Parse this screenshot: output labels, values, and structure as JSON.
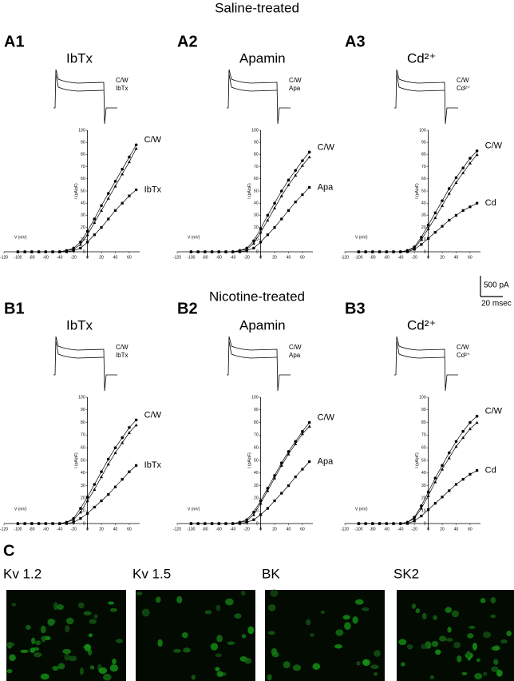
{
  "headings": {
    "saline": "Saline-treated",
    "nicotine": "Nicotine-treated"
  },
  "scale_bar": {
    "current": "500 pA",
    "time": "20 msec"
  },
  "panel_c": {
    "label": "C",
    "images": [
      "Kv 1.2",
      "Kv 1.5",
      "BK",
      "SK2"
    ]
  },
  "chart_data": [
    {
      "type": "line",
      "panel": "A1",
      "title": "IbTx",
      "inset_labels": [
        "C/W",
        "IbTx"
      ],
      "xlabel": "V (mV)",
      "ylabel": "I (pA/pF)",
      "x": [
        -100,
        -90,
        -80,
        -70,
        -60,
        -50,
        -40,
        -30,
        -20,
        -10,
        0,
        10,
        20,
        30,
        40,
        50,
        60,
        70
      ],
      "series": [
        {
          "name": "C/W",
          "color": "#000000",
          "marker": "circle",
          "values": [
            0,
            0,
            0,
            0,
            0,
            0,
            0,
            1,
            3,
            8,
            17,
            27,
            38,
            48,
            58,
            68,
            78,
            88
          ]
        },
        {
          "color": "#000000",
          "marker": "triangle",
          "values": [
            0,
            0,
            0,
            0,
            0,
            0,
            0,
            1,
            2,
            6,
            14,
            24,
            34,
            44,
            54,
            64,
            74,
            85
          ]
        },
        {
          "name": "IbTx",
          "color": "#000000",
          "marker": "square",
          "values": [
            0,
            0,
            0,
            0,
            0,
            0,
            0,
            0,
            1,
            3,
            8,
            14,
            20,
            27,
            34,
            40,
            46,
            51
          ]
        }
      ],
      "xlim": [
        -120,
        75
      ],
      "ylim": [
        0,
        100
      ],
      "xticks": [
        -120,
        -100,
        -80,
        -60,
        -40,
        -20,
        0,
        20,
        40,
        60
      ],
      "yticks": [
        0,
        10,
        20,
        30,
        40,
        50,
        60,
        70,
        80,
        90,
        100
      ]
    },
    {
      "type": "line",
      "panel": "A2",
      "title": "Apamin",
      "inset_labels": [
        "C/W",
        "Apa"
      ],
      "xlabel": "V (mV)",
      "ylabel": "I (pA/pF)",
      "x": [
        -100,
        -90,
        -80,
        -70,
        -60,
        -50,
        -40,
        -30,
        -20,
        -10,
        0,
        10,
        20,
        30,
        40,
        50,
        60,
        70
      ],
      "series": [
        {
          "name": "C/W",
          "color": "#000000",
          "marker": "circle",
          "values": [
            0,
            0,
            0,
            0,
            0,
            0,
            0,
            1,
            3,
            9,
            19,
            30,
            40,
            50,
            59,
            67,
            75,
            82
          ]
        },
        {
          "color": "#000000",
          "marker": "triangle",
          "values": [
            0,
            0,
            0,
            0,
            0,
            0,
            0,
            1,
            2,
            7,
            16,
            26,
            36,
            46,
            55,
            63,
            71,
            78
          ]
        },
        {
          "name": "Apa",
          "color": "#000000",
          "marker": "square",
          "values": [
            0,
            0,
            0,
            0,
            0,
            0,
            0,
            0,
            1,
            3,
            8,
            14,
            20,
            27,
            34,
            41,
            47,
            53
          ]
        }
      ],
      "xlim": [
        -120,
        75
      ],
      "ylim": [
        0,
        100
      ],
      "xticks": [
        -120,
        -100,
        -80,
        -60,
        -40,
        -20,
        0,
        20,
        40,
        60
      ],
      "yticks": [
        0,
        10,
        20,
        30,
        40,
        50,
        60,
        70,
        80,
        90,
        100
      ]
    },
    {
      "type": "line",
      "panel": "A3",
      "title": "Cd²⁺",
      "inset_labels": [
        "C/W",
        "Cd²⁺"
      ],
      "xlabel": "V (mV)",
      "ylabel": "I (pA/pF)",
      "x": [
        -100,
        -90,
        -80,
        -70,
        -60,
        -50,
        -40,
        -30,
        -20,
        -10,
        0,
        10,
        20,
        30,
        40,
        50,
        60,
        70
      ],
      "series": [
        {
          "name": "C/W",
          "color": "#000000",
          "marker": "circle",
          "values": [
            0,
            0,
            0,
            0,
            0,
            0,
            0,
            1,
            4,
            12,
            22,
            32,
            42,
            52,
            61,
            69,
            77,
            83
          ]
        },
        {
          "color": "#000000",
          "marker": "triangle",
          "values": [
            0,
            0,
            0,
            0,
            0,
            0,
            0,
            1,
            3,
            10,
            19,
            28,
            38,
            48,
            57,
            65,
            73,
            80
          ]
        },
        {
          "name": "Cd",
          "color": "#000000",
          "marker": "square",
          "values": [
            0,
            0,
            0,
            0,
            0,
            0,
            0,
            0,
            2,
            6,
            11,
            16,
            21,
            26,
            30,
            34,
            37,
            40
          ]
        }
      ],
      "xlim": [
        -120,
        75
      ],
      "ylim": [
        0,
        100
      ],
      "xticks": [
        -120,
        -100,
        -80,
        -60,
        -40,
        -20,
        0,
        20,
        40,
        60
      ],
      "yticks": [
        0,
        10,
        20,
        30,
        40,
        50,
        60,
        70,
        80,
        90,
        100
      ]
    },
    {
      "type": "line",
      "panel": "B1",
      "title": "IbTx",
      "inset_labels": [
        "C/W",
        "IbTx"
      ],
      "xlabel": "V (mV)",
      "ylabel": "I (pA/pF)",
      "x": [
        -100,
        -90,
        -80,
        -70,
        -60,
        -50,
        -40,
        -30,
        -20,
        -10,
        0,
        10,
        20,
        30,
        40,
        50,
        60,
        70
      ],
      "series": [
        {
          "name": "C/W",
          "color": "#000000",
          "marker": "circle",
          "values": [
            0,
            0,
            0,
            0,
            0,
            0,
            0,
            1,
            4,
            12,
            21,
            31,
            41,
            51,
            60,
            68,
            76,
            82
          ]
        },
        {
          "color": "#000000",
          "marker": "triangle",
          "values": [
            0,
            0,
            0,
            0,
            0,
            0,
            0,
            1,
            3,
            9,
            18,
            27,
            37,
            47,
            56,
            64,
            72,
            78
          ]
        },
        {
          "name": "IbTx",
          "color": "#000000",
          "marker": "square",
          "values": [
            0,
            0,
            0,
            0,
            0,
            0,
            0,
            0,
            1,
            4,
            8,
            13,
            18,
            23,
            29,
            35,
            41,
            46
          ]
        }
      ],
      "xlim": [
        -120,
        75
      ],
      "ylim": [
        0,
        100
      ],
      "xticks": [
        -120,
        -100,
        -80,
        -60,
        -40,
        -20,
        0,
        20,
        40,
        60
      ],
      "yticks": [
        0,
        10,
        20,
        30,
        40,
        50,
        60,
        70,
        80,
        90,
        100
      ]
    },
    {
      "type": "line",
      "panel": "B2",
      "title": "Apamin",
      "inset_labels": [
        "C/W",
        "Apa"
      ],
      "xlabel": "V (mV)",
      "ylabel": "I (pA/pF)",
      "x": [
        -100,
        -90,
        -80,
        -70,
        -60,
        -50,
        -40,
        -30,
        -20,
        -10,
        0,
        10,
        20,
        30,
        40,
        50,
        60,
        70
      ],
      "series": [
        {
          "name": "C/W",
          "color": "#000000",
          "marker": "circle",
          "values": [
            0,
            0,
            0,
            0,
            0,
            0,
            0,
            1,
            3,
            9,
            18,
            28,
            38,
            48,
            57,
            65,
            73,
            80
          ]
        },
        {
          "color": "#000000",
          "marker": "triangle",
          "values": [
            0,
            0,
            0,
            0,
            0,
            0,
            0,
            1,
            2,
            7,
            16,
            26,
            36,
            46,
            55,
            63,
            71,
            77
          ]
        },
        {
          "name": "Apa",
          "color": "#000000",
          "marker": "square",
          "values": [
            0,
            0,
            0,
            0,
            0,
            0,
            0,
            0,
            1,
            3,
            7,
            12,
            18,
            24,
            30,
            37,
            43,
            49
          ]
        }
      ],
      "xlim": [
        -120,
        75
      ],
      "ylim": [
        0,
        100
      ],
      "xticks": [
        -120,
        -100,
        -80,
        -60,
        -40,
        -20,
        0,
        20,
        40,
        60
      ],
      "yticks": [
        0,
        10,
        20,
        30,
        40,
        50,
        60,
        70,
        80,
        90,
        100
      ]
    },
    {
      "type": "line",
      "panel": "B3",
      "title": "Cd²⁺",
      "inset_labels": [
        "C/W",
        "Cd²⁺"
      ],
      "xlabel": "V (mV)",
      "ylabel": "I (pA/pF)",
      "x": [
        -100,
        -90,
        -80,
        -70,
        -60,
        -50,
        -40,
        -30,
        -20,
        -10,
        0,
        10,
        20,
        30,
        40,
        50,
        60,
        70
      ],
      "series": [
        {
          "name": "C/W",
          "color": "#000000",
          "marker": "circle",
          "values": [
            0,
            0,
            0,
            0,
            0,
            0,
            0,
            1,
            5,
            14,
            25,
            36,
            46,
            56,
            65,
            73,
            80,
            85
          ]
        },
        {
          "color": "#000000",
          "marker": "triangle",
          "values": [
            0,
            0,
            0,
            0,
            0,
            0,
            0,
            1,
            4,
            12,
            22,
            33,
            43,
            52,
            61,
            68,
            75,
            80
          ]
        },
        {
          "name": "Cd",
          "color": "#000000",
          "marker": "square",
          "values": [
            0,
            0,
            0,
            0,
            0,
            0,
            0,
            0,
            2,
            6,
            11,
            16,
            21,
            26,
            31,
            35,
            39,
            42
          ]
        }
      ],
      "xlim": [
        -120,
        75
      ],
      "ylim": [
        0,
        100
      ],
      "xticks": [
        -120,
        -100,
        -80,
        -60,
        -40,
        -20,
        0,
        20,
        40,
        60
      ],
      "yticks": [
        0,
        10,
        20,
        30,
        40,
        50,
        60,
        70,
        80,
        90,
        100
      ]
    }
  ]
}
